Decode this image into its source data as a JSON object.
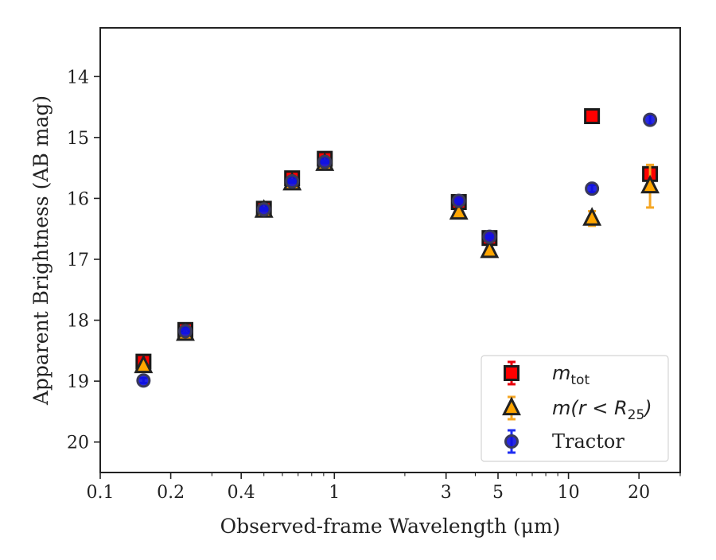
{
  "chart_data": {
    "type": "scatter",
    "title": "",
    "xlabel": "Observed-frame Wavelength (μm)",
    "ylabel": "Apparent Brightness (AB mag)",
    "xscale": "log",
    "yaxis_inverted": true,
    "xlim": [
      0.1,
      30
    ],
    "ylim": [
      20.5,
      13.2
    ],
    "x_ticks": [
      0.1,
      0.2,
      0.4,
      1,
      3,
      5,
      10,
      20
    ],
    "x_tick_labels": [
      "0.1",
      "0.2",
      "0.4",
      "1",
      "3",
      "5",
      "10",
      "20"
    ],
    "y_ticks": [
      14,
      15,
      16,
      17,
      18,
      19,
      20
    ],
    "y_tick_labels": [
      "14",
      "15",
      "16",
      "17",
      "18",
      "19",
      "20"
    ],
    "grid": false,
    "legend_position": "bottom-right",
    "series": [
      {
        "name": "m_tot",
        "legend_label": {
          "main": "m",
          "sub": "tot"
        },
        "marker": "square",
        "color": "#ff0000",
        "edge_color": "#1a1a1a",
        "errorbar_color": "#e8000b",
        "x": [
          0.153,
          0.231,
          0.5,
          0.66,
          0.91,
          3.4,
          4.6,
          12.6,
          22.3
        ],
        "y": [
          18.68,
          18.16,
          16.17,
          15.67,
          15.35,
          16.06,
          16.65,
          14.65,
          15.6
        ],
        "yerr": [
          0.04,
          0.03,
          0.02,
          0.02,
          0.02,
          0.02,
          0.02,
          0.03,
          0.05
        ]
      },
      {
        "name": "m(r < R25)",
        "legend_label": {
          "main": "m(r < R",
          "sub": "25",
          "tail": ")"
        },
        "marker": "triangle",
        "color": "#ffa500",
        "edge_color": "#222222",
        "errorbar_color": "#f5a623",
        "x": [
          0.153,
          0.231,
          0.5,
          0.66,
          0.91,
          3.4,
          4.6,
          12.6,
          22.3
        ],
        "y": [
          18.75,
          18.22,
          16.2,
          15.75,
          15.43,
          16.23,
          16.86,
          16.33,
          15.8
        ],
        "yerr": [
          0.04,
          0.03,
          0.02,
          0.02,
          0.02,
          0.03,
          0.03,
          0.12,
          0.35
        ]
      },
      {
        "name": "Tractor",
        "legend_label": {
          "main": "Tractor"
        },
        "marker": "circle",
        "color": "#1010e0",
        "edge_color": "#3a3a5a",
        "errorbar_color": "#1f2ef2",
        "x": [
          0.153,
          0.231,
          0.5,
          0.66,
          0.91,
          3.4,
          4.6,
          12.6,
          22.3
        ],
        "y": [
          18.99,
          18.18,
          16.18,
          15.72,
          15.4,
          16.04,
          16.63,
          15.84,
          14.71
        ],
        "yerr": [
          0.04,
          0.03,
          0.02,
          0.02,
          0.02,
          0.02,
          0.02,
          0.06,
          0.08
        ]
      }
    ]
  }
}
